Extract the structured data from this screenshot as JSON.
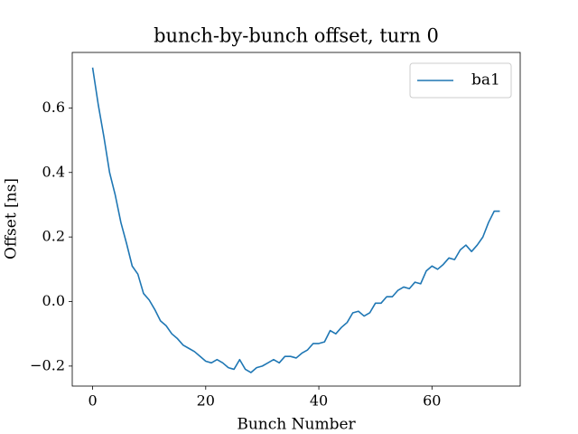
{
  "chart_data": {
    "type": "line",
    "title": "bunch-by-bunch offset, turn 0",
    "x_label": "Bunch Number",
    "y_label": "Offset [ns]",
    "x": [
      0,
      1,
      2,
      3,
      4,
      5,
      6,
      7,
      8,
      9,
      10,
      11,
      12,
      13,
      14,
      15,
      16,
      17,
      18,
      19,
      20,
      21,
      22,
      23,
      24,
      25,
      26,
      27,
      28,
      29,
      30,
      31,
      32,
      33,
      34,
      35,
      36,
      37,
      38,
      39,
      40,
      41,
      42,
      43,
      44,
      45,
      46,
      47,
      48,
      49,
      50,
      51,
      52,
      53,
      54,
      55,
      56,
      57,
      58,
      59,
      60,
      61,
      62,
      63,
      64,
      65,
      66,
      67,
      68,
      69,
      70,
      71,
      72
    ],
    "series": [
      {
        "name": "ba1",
        "color": "#1f77b4",
        "values": [
          0.725,
          0.61,
          0.51,
          0.4,
          0.33,
          0.245,
          0.18,
          0.11,
          0.085,
          0.025,
          0.005,
          -0.025,
          -0.06,
          -0.075,
          -0.1,
          -0.115,
          -0.135,
          -0.145,
          -0.155,
          -0.17,
          -0.185,
          -0.19,
          -0.18,
          -0.19,
          -0.205,
          -0.21,
          -0.18,
          -0.21,
          -0.22,
          -0.205,
          -0.2,
          -0.19,
          -0.18,
          -0.19,
          -0.17,
          -0.17,
          -0.175,
          -0.16,
          -0.15,
          -0.13,
          -0.13,
          -0.125,
          -0.09,
          -0.1,
          -0.08,
          -0.065,
          -0.035,
          -0.03,
          -0.045,
          -0.035,
          -0.005,
          -0.005,
          0.015,
          0.015,
          0.035,
          0.045,
          0.04,
          0.06,
          0.055,
          0.095,
          0.11,
          0.1,
          0.115,
          0.135,
          0.13,
          0.16,
          0.175,
          0.155,
          0.175,
          0.2,
          0.245,
          0.28,
          0.28
        ]
      }
    ],
    "xlim": [
      -3.6,
      75.6
    ],
    "ylim": [
      -0.262,
      0.772
    ],
    "xticks": [
      0,
      20,
      40,
      60
    ],
    "yticks": [
      {
        "value": -0.2,
        "label": "−0.2"
      },
      {
        "value": 0,
        "label": "0.0"
      },
      0.2,
      0.4,
      0.6
    ],
    "legend": "upper right"
  }
}
